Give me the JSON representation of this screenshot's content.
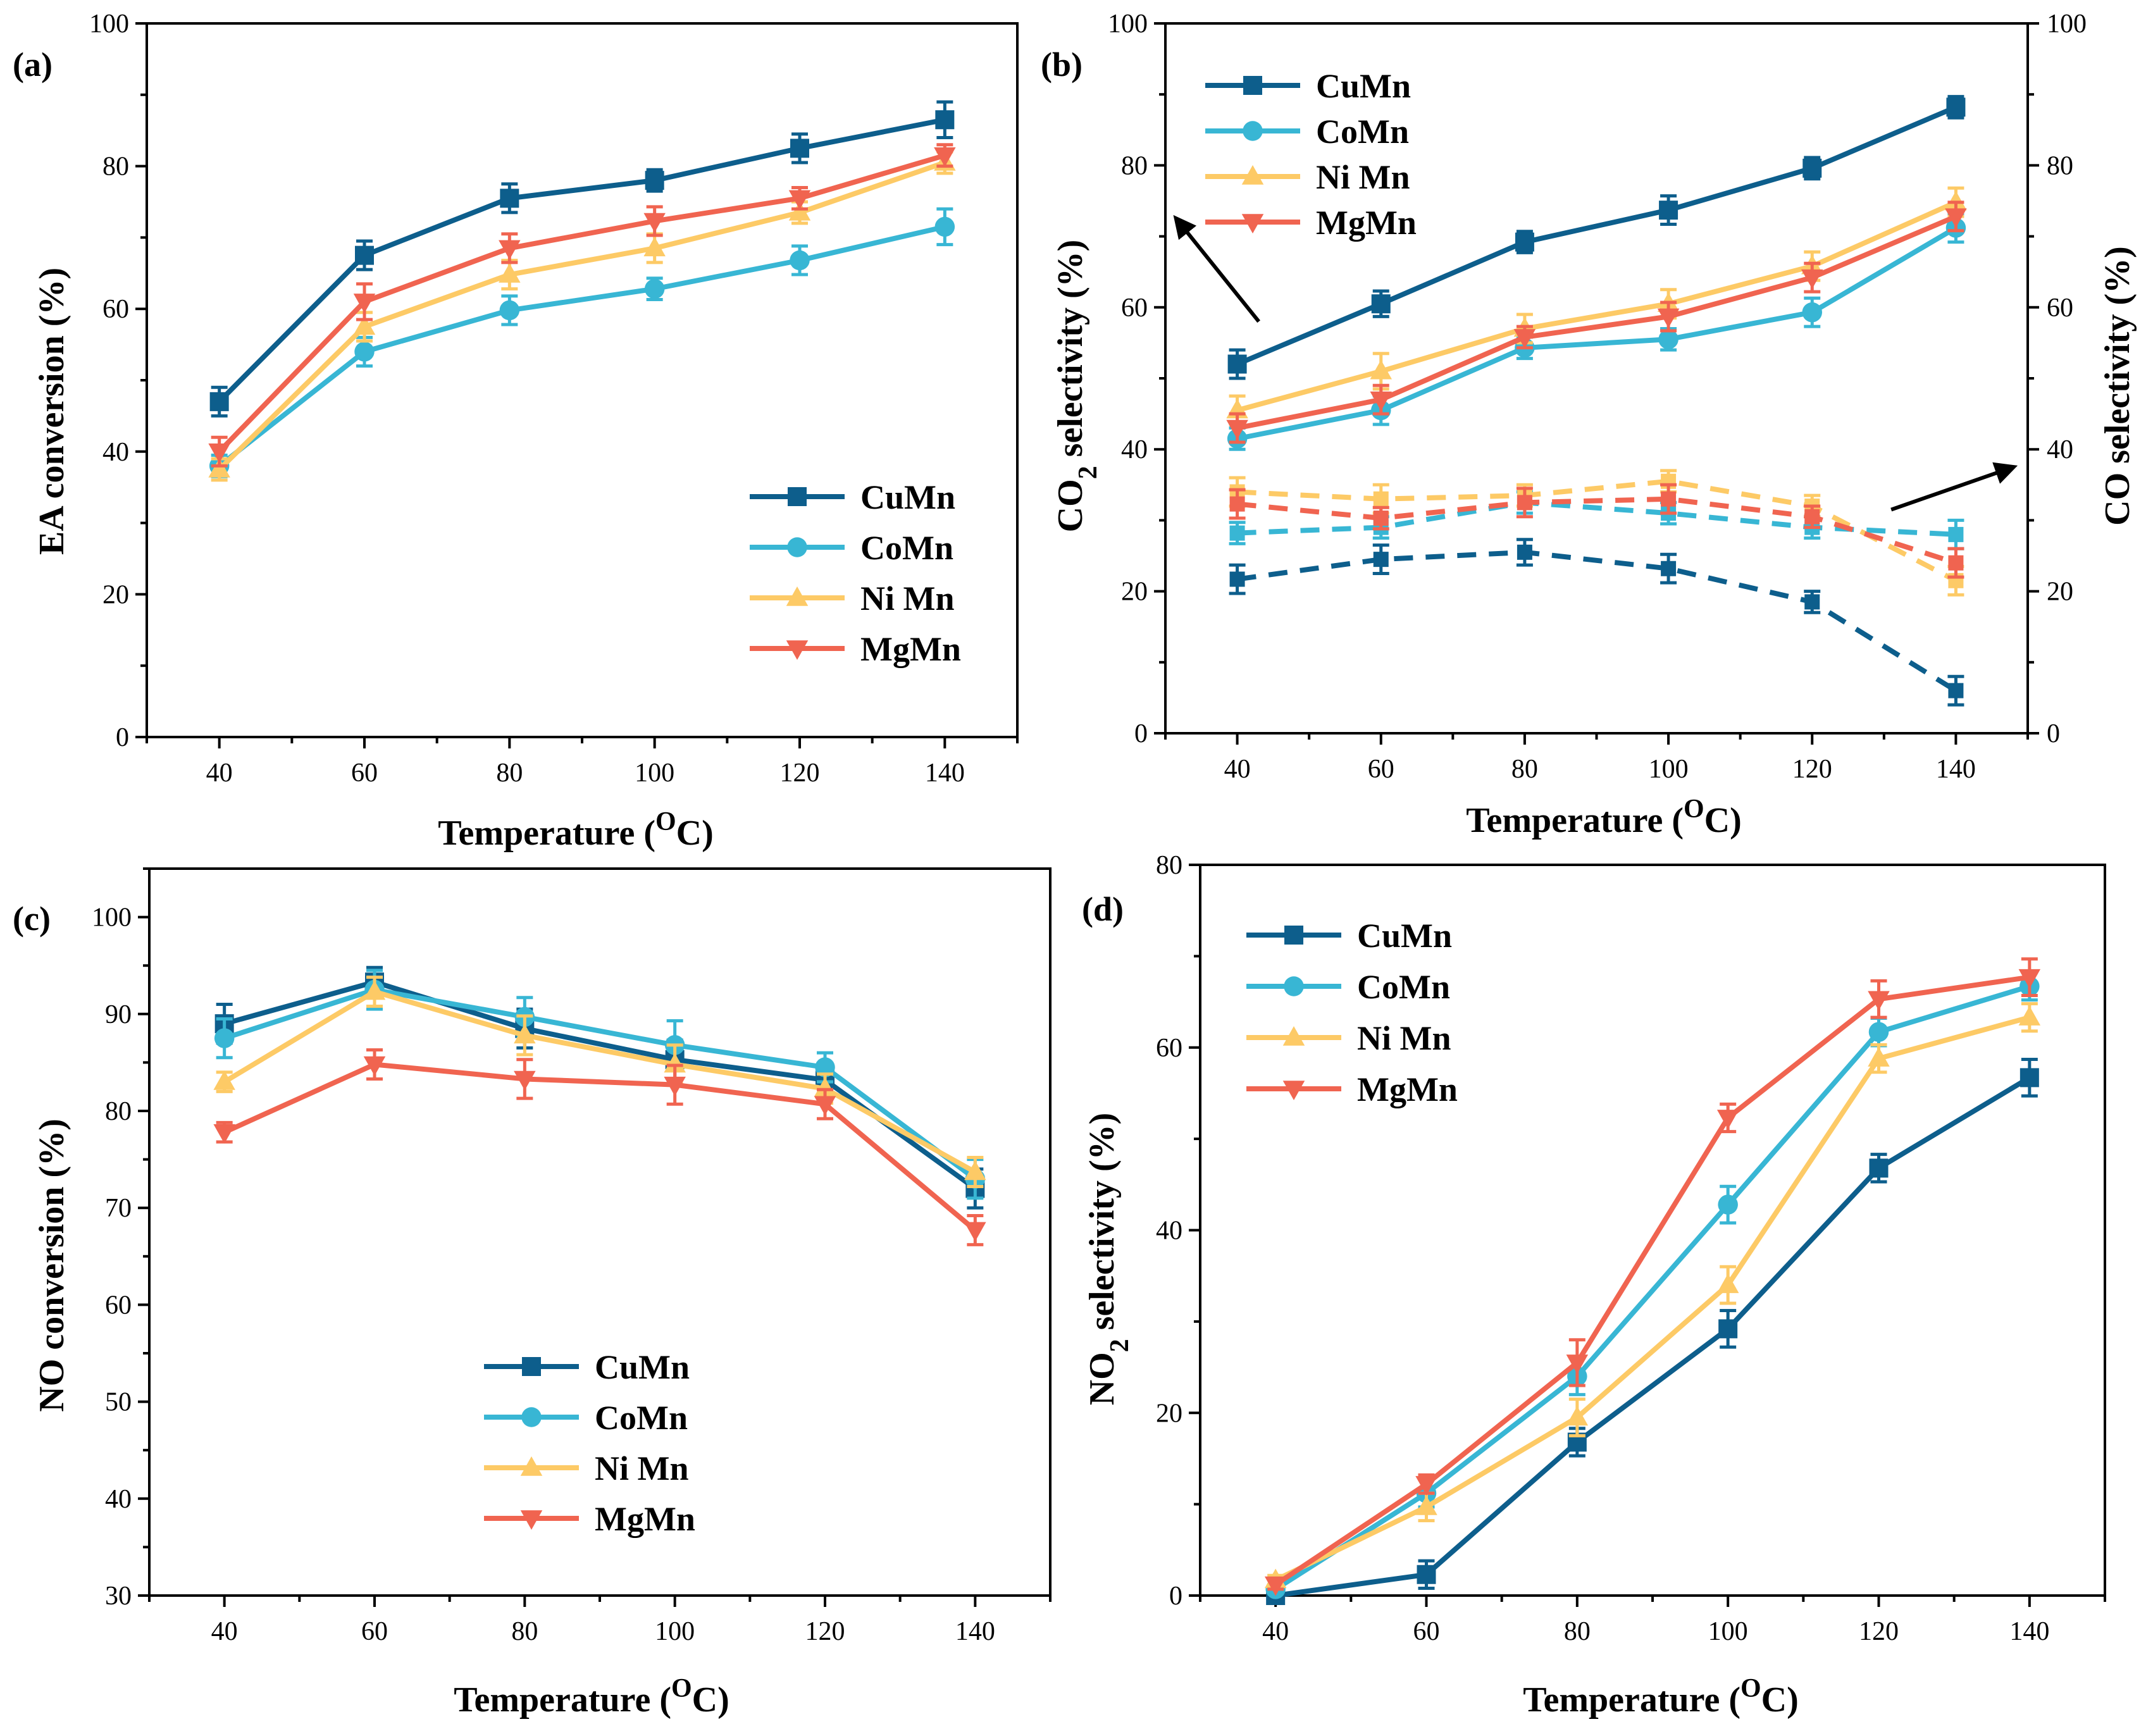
{
  "colors": {
    "CuMn": "#0d5e8c",
    "CoMn": "#38b6d4",
    "Ni Mn": "#fdca66",
    "MgMn": "#f06450"
  },
  "chart_data": [
    {
      "id": "a",
      "panel_label": "(a)",
      "type": "line",
      "xlabel": "Temperature (",
      "xlabel_sup": "O",
      "xlabel_end": "C)",
      "ylabel": "EA conversion (%)",
      "x": [
        40,
        60,
        80,
        100,
        120,
        140
      ],
      "xlim": [
        30,
        150
      ],
      "ylim": [
        0,
        100
      ],
      "xticks": [
        40,
        60,
        80,
        100,
        120,
        140
      ],
      "yticks": [
        0,
        20,
        40,
        60,
        80,
        100
      ],
      "legend_position": "bottom-right",
      "series": [
        {
          "name": "CuMn",
          "marker": "square",
          "values": [
            47,
            67.5,
            75.5,
            78,
            82.5,
            86.5
          ],
          "errors": [
            2,
            2,
            2,
            1.5,
            2,
            2.5
          ]
        },
        {
          "name": "CoMn",
          "marker": "circle",
          "values": [
            38,
            54,
            59.8,
            62.8,
            66.8,
            71.5
          ],
          "errors": [
            1.5,
            2,
            2,
            1.5,
            2,
            2.5
          ]
        },
        {
          "name": "Ni Mn",
          "marker": "triangle-up",
          "values": [
            37.5,
            57.5,
            64.8,
            68.5,
            73.5,
            80.5
          ],
          "errors": [
            1.5,
            2,
            2,
            2,
            1.5,
            1.5
          ]
        },
        {
          "name": "MgMn",
          "marker": "triangle-down",
          "values": [
            40,
            61,
            68.5,
            72.3,
            75.5,
            81.5
          ],
          "errors": [
            2,
            2.5,
            2,
            2,
            1.5,
            1.5
          ]
        }
      ]
    },
    {
      "id": "b",
      "panel_label": "(b)",
      "type": "line",
      "xlabel": "Temperature (",
      "xlabel_sup": "O",
      "xlabel_end": "C)",
      "ylabel_left_prefix": "CO",
      "ylabel_left_sub": "2",
      "ylabel_left_suffix": " selectivity (%)",
      "ylabel_right": "CO selectivity (%)",
      "x": [
        40,
        60,
        80,
        100,
        120,
        140
      ],
      "xlim": [
        30,
        150
      ],
      "ylim": [
        0,
        100
      ],
      "xticks": [
        40,
        60,
        80,
        100,
        120,
        140
      ],
      "yticks": [
        0,
        20,
        40,
        60,
        80,
        100
      ],
      "legend_position": "top-left",
      "series": [
        {
          "name": "CuMn",
          "marker": "square",
          "values": [
            52,
            60.5,
            69.2,
            73.7,
            79.6,
            88.2
          ],
          "errors": [
            2,
            1.8,
            1.5,
            2,
            1.5,
            1.5
          ]
        },
        {
          "name": "CoMn",
          "marker": "circle",
          "values": [
            41.5,
            45.5,
            54.3,
            55.5,
            59.3,
            71.2
          ],
          "errors": [
            1.5,
            2,
            1.5,
            1.5,
            2,
            2
          ]
        },
        {
          "name": "Ni Mn",
          "marker": "triangle-up",
          "values": [
            45.5,
            51,
            57,
            60.5,
            65.8,
            74.8
          ],
          "errors": [
            2,
            2.5,
            2,
            2,
            2,
            2
          ]
        },
        {
          "name": "MgMn",
          "marker": "triangle-down",
          "values": [
            43,
            47,
            55.8,
            58.7,
            64.2,
            72.8
          ],
          "errors": [
            2,
            2,
            1.5,
            2,
            2,
            2
          ]
        }
      ],
      "series_right": [
        {
          "name": "CuMn",
          "marker": "square",
          "values": [
            21.7,
            24.5,
            25.5,
            23.2,
            18.5,
            6
          ],
          "errors": [
            2,
            2,
            1.8,
            2,
            1.5,
            2
          ]
        },
        {
          "name": "CoMn",
          "marker": "square",
          "values": [
            28.2,
            29,
            32.5,
            31,
            29,
            28
          ],
          "errors": [
            1.5,
            1.5,
            1.5,
            1.5,
            1.5,
            2
          ]
        },
        {
          "name": "Ni Mn",
          "marker": "square",
          "values": [
            34,
            33,
            33.5,
            35.5,
            32,
            21.5
          ],
          "errors": [
            2,
            2,
            1.5,
            1.5,
            1.5,
            2
          ]
        },
        {
          "name": "MgMn",
          "marker": "square",
          "values": [
            32.3,
            30.3,
            32.5,
            33,
            30.5,
            24
          ],
          "errors": [
            2,
            1.5,
            2,
            2,
            1.5,
            2
          ]
        }
      ]
    },
    {
      "id": "c",
      "panel_label": "(c)",
      "type": "line",
      "xlabel": "Temperature (",
      "xlabel_sup": "O",
      "xlabel_end": "C)",
      "ylabel": "NO conversion (%)",
      "x": [
        40,
        60,
        80,
        100,
        120,
        140
      ],
      "xlim": [
        30,
        150
      ],
      "ylim": [
        30,
        105
      ],
      "xticks": [
        40,
        60,
        80,
        100,
        120,
        140
      ],
      "yticks": [
        30,
        40,
        50,
        60,
        70,
        80,
        90,
        100
      ],
      "legend_position": "bottom-center",
      "series": [
        {
          "name": "CuMn",
          "marker": "square",
          "values": [
            89,
            93.3,
            88.5,
            85.3,
            83.2,
            72
          ],
          "errors": [
            2,
            1.5,
            2,
            2,
            1.5,
            2
          ]
        },
        {
          "name": "CoMn",
          "marker": "circle",
          "values": [
            87.5,
            92.5,
            89.7,
            86.8,
            84.5,
            73
          ],
          "errors": [
            2,
            2,
            2,
            2.5,
            1.5,
            2
          ]
        },
        {
          "name": "Ni Mn",
          "marker": "triangle-up",
          "values": [
            83,
            92.3,
            87.8,
            84.8,
            82.3,
            73.7
          ],
          "errors": [
            1,
            1.5,
            2,
            2,
            1.5,
            1.5
          ]
        },
        {
          "name": "MgMn",
          "marker": "triangle-down",
          "values": [
            77.8,
            84.8,
            83.3,
            82.7,
            80.7,
            67.7
          ],
          "errors": [
            1,
            1.5,
            2,
            2,
            1.5,
            1.5
          ]
        }
      ]
    },
    {
      "id": "d",
      "panel_label": "(d)",
      "type": "line",
      "xlabel": "Temperature (",
      "xlabel_sup": "O",
      "xlabel_end": "C)",
      "ylabel_prefix": "NO",
      "ylabel_sub": "2",
      "ylabel_suffix": " selectivity (%)",
      "x": [
        40,
        60,
        80,
        100,
        120,
        140
      ],
      "xlim": [
        30,
        150
      ],
      "ylim": [
        0,
        80
      ],
      "xticks": [
        40,
        60,
        80,
        100,
        120,
        140
      ],
      "yticks": [
        0,
        20,
        40,
        60,
        80
      ],
      "legend_position": "top-left",
      "series": [
        {
          "name": "CuMn",
          "marker": "square",
          "values": [
            0,
            2.3,
            16.8,
            29.2,
            46.8,
            56.7
          ],
          "errors": [
            0.5,
            1.5,
            1.5,
            2,
            1.5,
            2
          ]
        },
        {
          "name": "CoMn",
          "marker": "circle",
          "values": [
            0.7,
            11.2,
            24,
            42.8,
            61.7,
            66.7
          ],
          "errors": [
            0.5,
            1.5,
            2,
            2,
            1.5,
            1.5
          ]
        },
        {
          "name": "Ni Mn",
          "marker": "triangle-up",
          "values": [
            1.7,
            9.7,
            19.5,
            34,
            58.8,
            63.3
          ],
          "errors": [
            0.5,
            1.5,
            2,
            2,
            1.5,
            1.5
          ]
        },
        {
          "name": "MgMn",
          "marker": "triangle-down",
          "values": [
            1.2,
            12.2,
            25.5,
            52.3,
            65.3,
            67.7
          ],
          "errors": [
            0.5,
            1,
            2.5,
            1.5,
            2,
            2
          ]
        }
      ]
    }
  ]
}
